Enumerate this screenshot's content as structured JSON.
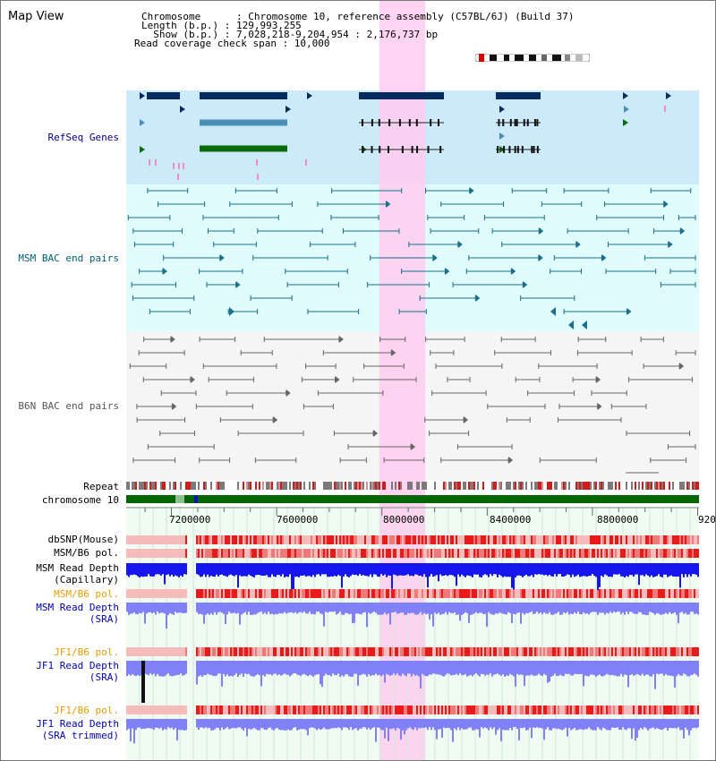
{
  "page_title": "Map View",
  "header": {
    "chromosome_label": "Chromosome      : Chromosome 10, reference assembly (C57BL/6J) (Build 37)",
    "length_label": "Length (b.p.) : 129,993,255",
    "show_label": "  Show (b.p.) : 7,028,218-9,204,954 : 2,176,737 bp",
    "coverage_label": "Read coverage check span : 10,000"
  },
  "tracks": {
    "refseq": {
      "label": "RefSeq Genes",
      "color": "#00008b"
    },
    "msm_bac": {
      "label": "MSM BAC end pairs",
      "color": "#006070"
    },
    "b6n_bac": {
      "label": "B6N BAC end pairs",
      "color": "#555555"
    },
    "repeat": {
      "label": "Repeat"
    },
    "chromosome": {
      "label": "chromosome 10"
    },
    "dbsnp": {
      "label": "dbSNP(Mouse)"
    },
    "msm_b6_pol_1": {
      "label": "MSM/B6 pol."
    },
    "msm_depth_cap": {
      "label_1": "MSM Read Depth",
      "label_2": "(Capillary)"
    },
    "msm_b6_pol_2": {
      "label": "MSM/B6 pol.",
      "color": "#e69b00"
    },
    "msm_depth_sra": {
      "label_1": "MSM Read Depth",
      "label_2": "(SRA)",
      "color": "#0000b0"
    },
    "jf1_b6_pol_1": {
      "label": "JF1/B6 pol.",
      "color": "#e69b00"
    },
    "jf1_depth_sra": {
      "label_1": "JF1 Read Depth",
      "label_2": "(SRA)",
      "color": "#0000b0"
    },
    "jf1_b6_pol_2": {
      "label": "JF1/B6 pol.",
      "color": "#e69b00"
    },
    "jf1_depth_trim": {
      "label_1": "JF1 Read Depth",
      "label_2": "(SRA trimmed)",
      "color": "#0000b0"
    }
  },
  "ruler": {
    "start_bp": 7028218,
    "end_bp": 9204954,
    "tick_labels": [
      "7200000",
      "7600000",
      "8000000",
      "8400000",
      "8800000",
      "920"
    ]
  },
  "highlight": {
    "start_bp": 7990000,
    "end_bp": 8165000,
    "color": "#ffcdf0"
  },
  "colors": {
    "refseq_bg": "#cdeafa",
    "msm_bg": "#e0fcfc",
    "b6n_bg": "#f5f5f5",
    "gene_dark": "#062b5e",
    "gene_mid": "#4a8fb5",
    "gene_green": "#0a6b0a",
    "chromosome": "#006600",
    "pol_low": "#f6bcbc",
    "pol_high": "#e81a1a",
    "depth_dark": "#1515f0",
    "depth_light": "#8080f8"
  },
  "sections": {
    "refseq": {
      "y0": 100,
      "y1": 205
    },
    "msm_bac": {
      "y0": 205,
      "y1": 370
    },
    "b6n_bac": {
      "y0": 370,
      "y1": 535
    },
    "lower": {
      "y0": 565,
      "y1": 848
    }
  }
}
